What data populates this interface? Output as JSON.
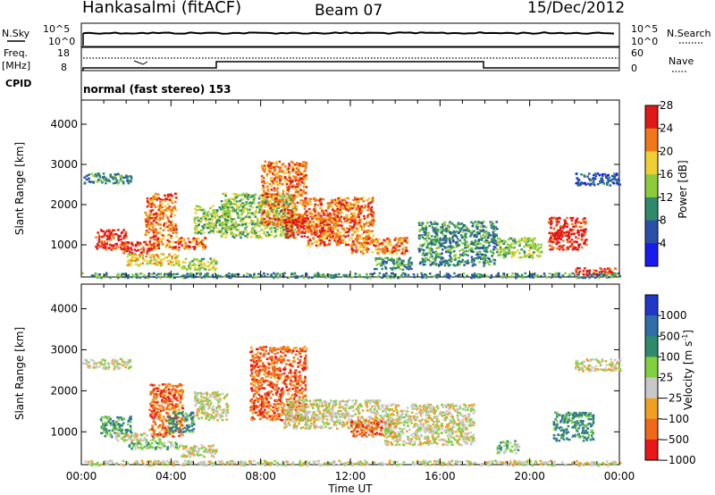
{
  "header": {
    "station": "Hankasalmi (fitACF)",
    "beam": "Beam 07",
    "date": "15/Dec/2012"
  },
  "status": {
    "nsky_label": "N.Sky",
    "nsearch_label": "N.Search",
    "freq_label_1": "Freq.",
    "freq_label_2": "[MHz]",
    "cpid_label": "CPID",
    "nave_label": "Nave",
    "nsky_ticks": [
      "10^5",
      "10^0"
    ],
    "nsearch_ticks": [
      "10^5",
      "10^0"
    ],
    "freq_ticks": [
      "18",
      "8"
    ],
    "nave_ticks": [
      "60",
      "0"
    ],
    "cpid_text": "normal (fast stereo) 153"
  },
  "colors": {
    "nsky_line": "#000000",
    "freq_line": "#000000",
    "nave_line": "#000000"
  },
  "chart_data": [
    {
      "type": "heatmap",
      "panel": "power",
      "ylabel": "Slant Range [km]",
      "xlabel": "",
      "ylim": [
        200,
        4600
      ],
      "yticks": [
        "1000",
        "2000",
        "3000",
        "4000"
      ],
      "colorbar_label": "Power [dB]",
      "colorbar_ticks": [
        "4",
        "8",
        "12",
        "16",
        "20",
        "24",
        "28"
      ],
      "colorbar_colors": [
        "#1a1af0",
        "#2a4fa8",
        "#2e8a6b",
        "#8ccc3c",
        "#f0d030",
        "#f07818",
        "#e01818"
      ],
      "scatter_regions": [
        {
          "t0": 0.0,
          "t1": 2.2,
          "r0": 2550,
          "r1": 2800,
          "level": 2
        },
        {
          "t0": 0.6,
          "t1": 2.0,
          "r0": 900,
          "r1": 1400,
          "level": 6
        },
        {
          "t0": 1.8,
          "t1": 3.2,
          "r0": 800,
          "r1": 1100,
          "level": 6
        },
        {
          "t0": 2.0,
          "t1": 4.4,
          "r0": 500,
          "r1": 800,
          "level": 4
        },
        {
          "t0": 2.8,
          "t1": 4.2,
          "r0": 1200,
          "r1": 2300,
          "level": 5
        },
        {
          "t0": 3.0,
          "t1": 5.5,
          "r0": 900,
          "r1": 1200,
          "level": 5
        },
        {
          "t0": 4.4,
          "t1": 6.0,
          "r0": 400,
          "r1": 700,
          "level": 3
        },
        {
          "t0": 5.0,
          "t1": 6.5,
          "r0": 1300,
          "r1": 2000,
          "level": 3
        },
        {
          "t0": 6.2,
          "t1": 9.5,
          "r0": 1200,
          "r1": 2300,
          "level": 3
        },
        {
          "t0": 8.0,
          "t1": 10.0,
          "r0": 1500,
          "r1": 3100,
          "level": 5
        },
        {
          "t0": 9.0,
          "t1": 11.5,
          "r0": 1200,
          "r1": 1700,
          "level": 6
        },
        {
          "t0": 10.0,
          "t1": 13.0,
          "r0": 1000,
          "r1": 2200,
          "level": 5
        },
        {
          "t0": 12.0,
          "t1": 14.5,
          "r0": 800,
          "r1": 1200,
          "level": 5
        },
        {
          "t0": 13.0,
          "t1": 14.7,
          "r0": 400,
          "r1": 700,
          "level": 2
        },
        {
          "t0": 15.0,
          "t1": 18.5,
          "r0": 500,
          "r1": 1600,
          "level": 2
        },
        {
          "t0": 18.5,
          "t1": 20.5,
          "r0": 700,
          "r1": 1200,
          "level": 3
        },
        {
          "t0": 20.8,
          "t1": 22.5,
          "r0": 900,
          "r1": 1700,
          "level": 6
        },
        {
          "t0": 22.0,
          "t1": 24.0,
          "r0": 2500,
          "r1": 2800,
          "level": 1
        },
        {
          "t0": 22.0,
          "t1": 23.8,
          "r0": 250,
          "r1": 450,
          "level": 6
        },
        {
          "t0": 0.0,
          "t1": 24.0,
          "r0": 200,
          "r1": 320,
          "level": 2
        }
      ]
    },
    {
      "type": "heatmap",
      "panel": "velocity",
      "ylabel": "Slant Range [km]",
      "xlabel": "Time UT",
      "ylim": [
        200,
        4600
      ],
      "yticks": [
        "1000",
        "2000",
        "3000",
        "4000"
      ],
      "xticks": [
        "00:00",
        "04:00",
        "08:00",
        "12:00",
        "16:00",
        "20:00",
        "00:00"
      ],
      "xlim_hours": [
        0,
        24
      ],
      "colorbar_label": "Velocity [m s",
      "colorbar_label_sup": "-1",
      "colorbar_label_end": "]",
      "colorbar_ticks": [
        "1000",
        "500",
        "100",
        "25",
        "−25",
        "−100",
        "−500",
        "−1000"
      ],
      "colorbar_colors": [
        "#2038c8",
        "#2f6ea8",
        "#2e8a6b",
        "#80d040",
        "#c8c8c8",
        "#f0a020",
        "#f06818",
        "#e81818"
      ],
      "scatter_regions": [
        {
          "t0": 0.0,
          "t1": 2.2,
          "r0": 2550,
          "r1": 2800,
          "level": 4
        },
        {
          "t0": 0.8,
          "t1": 2.2,
          "r0": 900,
          "r1": 1400,
          "level": 2
        },
        {
          "t0": 1.5,
          "t1": 3.5,
          "r0": 800,
          "r1": 1000,
          "level": 4
        },
        {
          "t0": 2.0,
          "t1": 4.4,
          "r0": 600,
          "r1": 800,
          "level": 3
        },
        {
          "t0": 3.0,
          "t1": 4.5,
          "r0": 900,
          "r1": 2200,
          "level": 6
        },
        {
          "t0": 3.8,
          "t1": 5.0,
          "r0": 1000,
          "r1": 1500,
          "level": 2
        },
        {
          "t0": 4.4,
          "t1": 6.0,
          "r0": 400,
          "r1": 700,
          "level": 4
        },
        {
          "t0": 5.0,
          "t1": 6.5,
          "r0": 1300,
          "r1": 2000,
          "level": 4
        },
        {
          "t0": 7.5,
          "t1": 10.0,
          "r0": 1300,
          "r1": 3100,
          "level": 6
        },
        {
          "t0": 9.0,
          "t1": 13.5,
          "r0": 1100,
          "r1": 1800,
          "level": 4
        },
        {
          "t0": 12.0,
          "t1": 14.0,
          "r0": 900,
          "r1": 1300,
          "level": 6
        },
        {
          "t0": 13.5,
          "t1": 17.5,
          "r0": 700,
          "r1": 1700,
          "level": 4
        },
        {
          "t0": 18.5,
          "t1": 19.5,
          "r0": 500,
          "r1": 800,
          "level": 3
        },
        {
          "t0": 21.0,
          "t1": 22.8,
          "r0": 800,
          "r1": 1500,
          "level": 2
        },
        {
          "t0": 22.0,
          "t1": 24.0,
          "r0": 2500,
          "r1": 2800,
          "level": 4
        },
        {
          "t0": 0.0,
          "t1": 24.0,
          "r0": 200,
          "r1": 320,
          "level": 4
        }
      ]
    }
  ]
}
